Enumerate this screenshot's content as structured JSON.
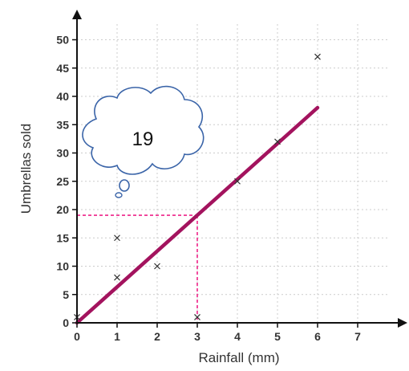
{
  "chart_data": {
    "type": "scatter",
    "title": "",
    "xlabel": "Rainfall (mm)",
    "ylabel": "Umbrellas sold",
    "xlim": [
      0,
      8
    ],
    "ylim": [
      0,
      54
    ],
    "x_ticks": [
      0,
      1,
      2,
      3,
      4,
      5,
      6,
      7
    ],
    "y_ticks": [
      0,
      5,
      10,
      15,
      20,
      25,
      30,
      35,
      40,
      45,
      50
    ],
    "grid": true,
    "marker": "x",
    "points": [
      {
        "x": 0,
        "y": 1
      },
      {
        "x": 1,
        "y": 8
      },
      {
        "x": 1,
        "y": 15
      },
      {
        "x": 2,
        "y": 10
      },
      {
        "x": 3,
        "y": 1
      },
      {
        "x": 4,
        "y": 25
      },
      {
        "x": 5,
        "y": 32
      },
      {
        "x": 6,
        "y": 47
      }
    ],
    "trend_line": {
      "x1": 0,
      "y1": 0,
      "x2": 6,
      "y2": 38,
      "color": "#a3135e"
    },
    "guide_lines": {
      "x": 3,
      "y": 19,
      "color": "#ee2288"
    },
    "callout": {
      "text": "19",
      "shape": "thought-cloud"
    },
    "colors": {
      "axis": "#111111",
      "grid": "#cccccc",
      "marker": "#333333",
      "cloud_stroke": "#3a64a8"
    }
  }
}
